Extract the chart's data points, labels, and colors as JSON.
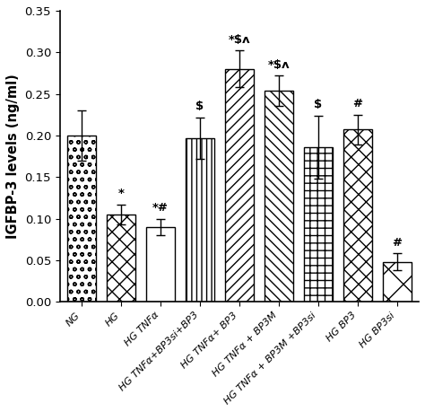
{
  "categories": [
    "NG",
    "HG",
    "HG TNFα",
    "HG TNFα+BP3si+BP3",
    "HG TNFα+ BP3",
    "HG TNFα + BP3M",
    "HG TNFα + BP3M +BP3si",
    "HG BP3",
    "HG BP3si"
  ],
  "values": [
    0.2,
    0.105,
    0.09,
    0.197,
    0.28,
    0.254,
    0.186,
    0.207,
    0.048
  ],
  "errors": [
    0.03,
    0.012,
    0.01,
    0.025,
    0.022,
    0.018,
    0.038,
    0.018,
    0.01
  ],
  "significance": [
    "",
    "*",
    "*#",
    "$",
    "*$ʌ",
    "*$ʌ",
    "$",
    "#",
    "#"
  ],
  "ylabel": "IGFBP-3 levels (ng/ml)",
  "ylim": [
    0,
    0.35
  ],
  "yticks": [
    0.0,
    0.05,
    0.1,
    0.15,
    0.2,
    0.25,
    0.3,
    0.35
  ],
  "fig_width": 4.74,
  "fig_height": 4.59,
  "dpi": 100
}
